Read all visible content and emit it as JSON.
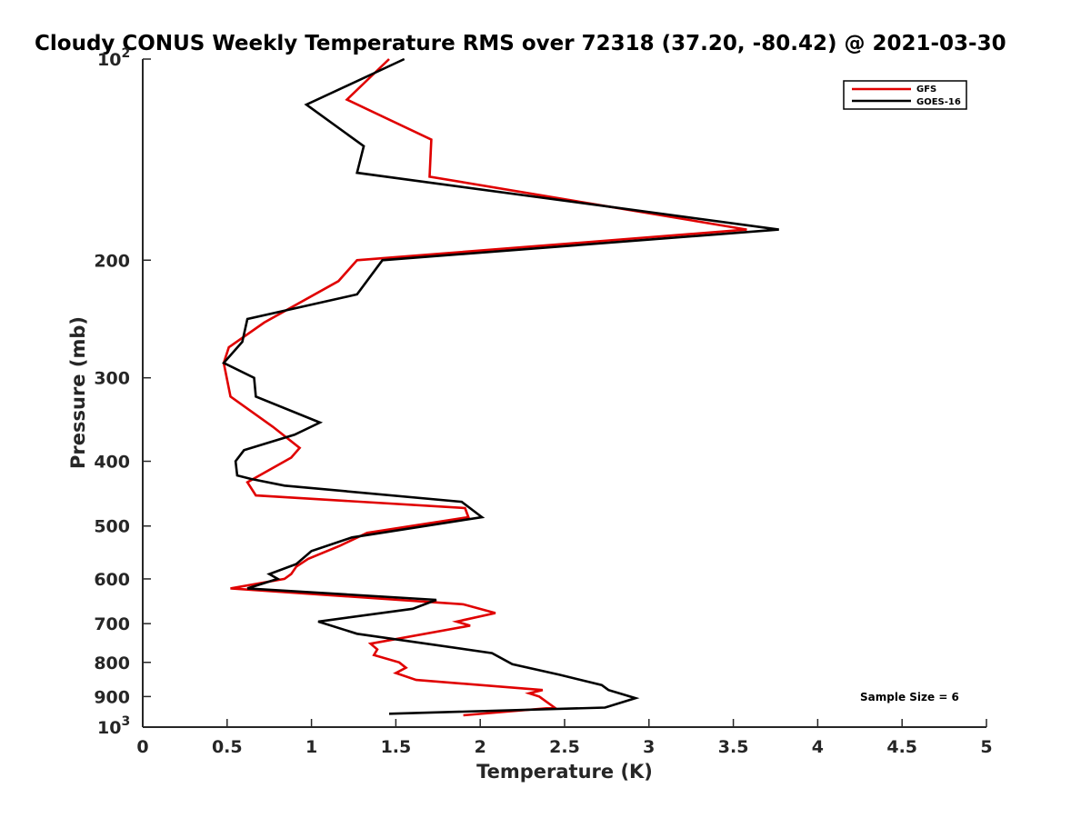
{
  "chart_data": {
    "type": "line",
    "title": "Cloudy CONUS Weekly Temperature RMS over 72318 (37.20, -80.42) @ 2021-03-30",
    "xlabel": "Temperature (K)",
    "ylabel": "Pressure (mb)",
    "xlim": [
      0,
      5
    ],
    "ylim": [
      100,
      1000
    ],
    "yscale": "log",
    "y_direction": "reversed",
    "x_ticks": [
      "0",
      "0.5",
      "1",
      "1.5",
      "2",
      "2.5",
      "3",
      "3.5",
      "4",
      "4.5",
      "5"
    ],
    "y_ticks": [
      {
        "value": 100,
        "base": "10",
        "exp": "2"
      },
      {
        "value": 200,
        "label": "200"
      },
      {
        "value": 300,
        "label": "300"
      },
      {
        "value": 400,
        "label": "400"
      },
      {
        "value": 500,
        "label": "500"
      },
      {
        "value": 600,
        "label": "600"
      },
      {
        "value": 700,
        "label": "700"
      },
      {
        "value": 800,
        "label": "800"
      },
      {
        "value": 900,
        "label": "900"
      },
      {
        "value": 1000,
        "base": "10",
        "exp": "3"
      }
    ],
    "grid": false,
    "legend_position": "top-right",
    "annotation": "Sample Size = 6",
    "series": [
      {
        "name": "GFS",
        "color": "#e00000",
        "points": [
          [
            1.46,
            100
          ],
          [
            1.21,
            115
          ],
          [
            1.71,
            132
          ],
          [
            1.7,
            150
          ],
          [
            3.58,
            180
          ],
          [
            1.27,
            200
          ],
          [
            1.16,
            215
          ],
          [
            0.72,
            248
          ],
          [
            0.51,
            270
          ],
          [
            0.48,
            285
          ],
          [
            0.52,
            320
          ],
          [
            0.77,
            355
          ],
          [
            0.93,
            382
          ],
          [
            0.88,
            395
          ],
          [
            0.62,
            430
          ],
          [
            0.67,
            450
          ],
          [
            1.91,
            470
          ],
          [
            1.93,
            485
          ],
          [
            1.33,
            512
          ],
          [
            1.17,
            535
          ],
          [
            0.98,
            560
          ],
          [
            0.91,
            575
          ],
          [
            0.88,
            590
          ],
          [
            0.84,
            600
          ],
          [
            0.52,
            620
          ],
          [
            1.9,
            655
          ],
          [
            2.09,
            675
          ],
          [
            1.86,
            695
          ],
          [
            1.94,
            705
          ],
          [
            1.35,
            750
          ],
          [
            1.39,
            765
          ],
          [
            1.37,
            780
          ],
          [
            1.52,
            800
          ],
          [
            1.56,
            815
          ],
          [
            1.5,
            830
          ],
          [
            1.62,
            850
          ],
          [
            2.37,
            880
          ],
          [
            2.29,
            890
          ],
          [
            2.35,
            900
          ],
          [
            2.44,
            935
          ],
          [
            1.9,
            960
          ]
        ]
      },
      {
        "name": "GOES-16",
        "color": "#000000",
        "points": [
          [
            1.55,
            100
          ],
          [
            0.97,
            117
          ],
          [
            1.31,
            135
          ],
          [
            1.27,
            148
          ],
          [
            3.77,
            180
          ],
          [
            1.42,
            200
          ],
          [
            1.27,
            225
          ],
          [
            0.62,
            245
          ],
          [
            0.59,
            265
          ],
          [
            0.48,
            285
          ],
          [
            0.66,
            300
          ],
          [
            0.67,
            320
          ],
          [
            1.05,
            350
          ],
          [
            0.9,
            365
          ],
          [
            0.6,
            385
          ],
          [
            0.55,
            400
          ],
          [
            0.56,
            420
          ],
          [
            0.64,
            425
          ],
          [
            0.84,
            435
          ],
          [
            1.89,
            460
          ],
          [
            2.01,
            485
          ],
          [
            1.24,
            520
          ],
          [
            1.0,
            545
          ],
          [
            0.91,
            570
          ],
          [
            0.75,
            590
          ],
          [
            0.8,
            600
          ],
          [
            0.62,
            620
          ],
          [
            1.74,
            645
          ],
          [
            1.6,
            665
          ],
          [
            1.04,
            695
          ],
          [
            1.27,
            725
          ],
          [
            2.07,
            775
          ],
          [
            2.19,
            805
          ],
          [
            2.47,
            835
          ],
          [
            2.72,
            865
          ],
          [
            2.76,
            880
          ],
          [
            2.92,
            905
          ],
          [
            2.74,
            935
          ],
          [
            1.46,
            955
          ]
        ]
      }
    ]
  }
}
